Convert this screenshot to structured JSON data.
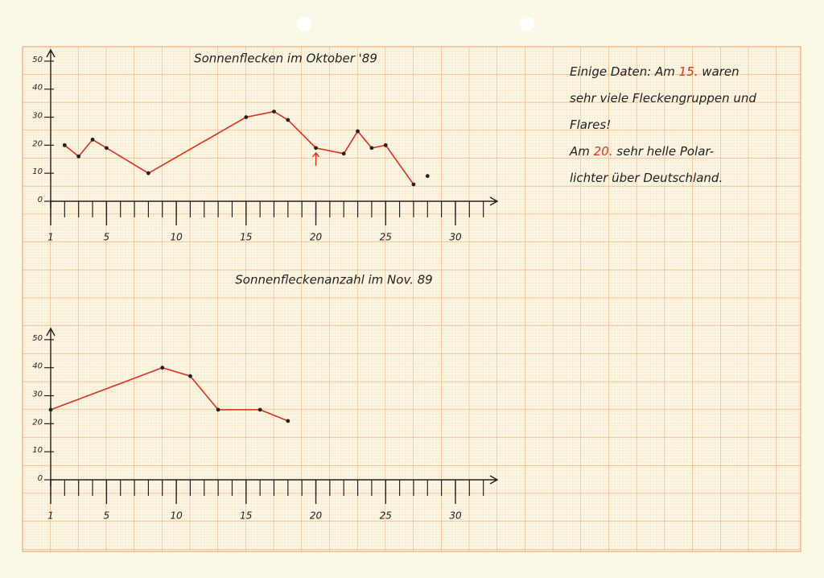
{
  "chart_data": [
    {
      "type": "line",
      "title": "Sonnenflecken im Oktober '89",
      "x": [
        2,
        3,
        4,
        5,
        8,
        15,
        17,
        18,
        20,
        22,
        23,
        24,
        25,
        27
      ],
      "values": [
        20,
        16,
        22,
        19,
        10,
        30,
        32,
        29,
        19,
        17,
        25,
        19,
        20,
        6
      ],
      "extra_points": {
        "x": [
          28
        ],
        "values": [
          9
        ]
      },
      "arrow_at": 20,
      "color": "#e0301e",
      "xlim": [
        1,
        33
      ],
      "ylim": [
        0,
        54
      ],
      "xticks": [
        1,
        5,
        10,
        15,
        20,
        25,
        30
      ],
      "xminorstep": 1,
      "yticks": [
        0,
        10,
        20,
        30,
        40,
        50
      ]
    },
    {
      "type": "line",
      "title": "Sonnenfleckenanzahl im Nov. 89",
      "x": [
        1,
        9,
        11,
        13,
        16,
        18
      ],
      "values": [
        25,
        40,
        37,
        25,
        25,
        21
      ],
      "color": "#e0301e",
      "xlim": [
        1,
        33
      ],
      "ylim": [
        0,
        54
      ],
      "xticks": [
        1,
        5,
        10,
        15,
        20,
        25,
        30
      ],
      "xminorstep": 1,
      "yticks": [
        0,
        10,
        20,
        30,
        40,
        50
      ]
    }
  ],
  "note": {
    "lines": [
      [
        {
          "text": "Einige Daten: Am "
        },
        {
          "text": "15.",
          "color": "#e0301e"
        },
        {
          "text": " waren"
        }
      ],
      [
        {
          "text": "sehr viele Fleckengruppen und"
        }
      ],
      [
        {
          "text": "Flares!"
        }
      ],
      [
        {
          "text": "Am "
        },
        {
          "text": "20.",
          "color": "#e0301e"
        },
        {
          "text": " sehr helle Polar-"
        }
      ],
      [
        {
          "text": "lichter über Deutschland."
        }
      ]
    ]
  }
}
